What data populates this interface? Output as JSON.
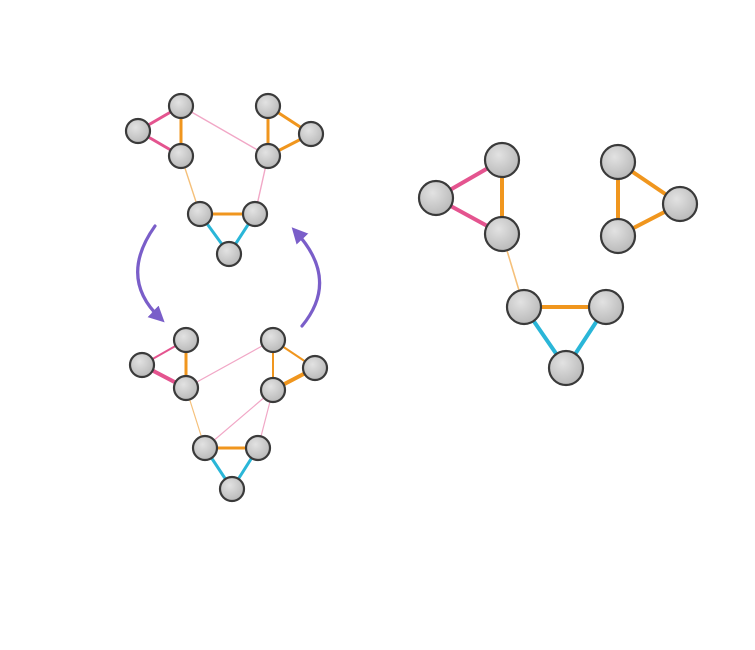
{
  "colors": {
    "background": "#ffffff",
    "node_fill": "#c9c9c9",
    "node_stroke": "#3a3a3a",
    "pink": "#e4548f",
    "orange": "#f0961e",
    "cyan": "#2ab6d8",
    "light_pink": "#f1a7c6",
    "light_orange": "#f5c07a",
    "arrow": "#7a5ec9"
  },
  "diagram": {
    "panels": [
      "left-top-graph",
      "left-bottom-graph",
      "right-graph"
    ],
    "arrows": [
      "down-left-arrow",
      "up-right-arrow"
    ]
  }
}
